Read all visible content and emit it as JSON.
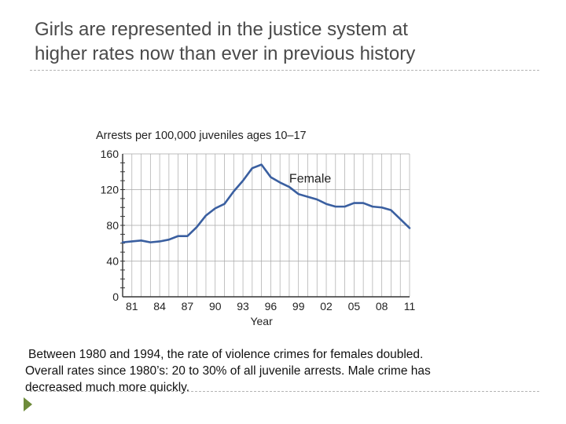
{
  "slide": {
    "title": "Girls are represented in the justice system at\nhigher rates now than ever in previous history",
    "caption_lines": [
      "Between  1980 and 1994, the rate of violence crimes for females doubled.",
      "Overall rates since 1980’s: 20 to 30% of all juvenile arrests. Male crime has",
      "decreased much more quickly."
    ]
  },
  "colors": {
    "line": "#3a5fa0",
    "grid": "#a9a9a9",
    "axis": "#333333",
    "bullet": "#6d8b3a"
  },
  "chart_data": {
    "type": "line",
    "title": "Arrests per 100,000 juveniles ages 10–17",
    "xlabel": "Year",
    "ylabel": "",
    "ylim": [
      0,
      160
    ],
    "yticks": [
      0,
      40,
      80,
      120,
      160
    ],
    "xlim": [
      1980,
      2011
    ],
    "xticks": [
      1981,
      1984,
      1987,
      1990,
      1993,
      1996,
      1999,
      2002,
      2005,
      2008,
      2011
    ],
    "xtick_labels": [
      "81",
      "84",
      "87",
      "90",
      "93",
      "96",
      "99",
      "02",
      "05",
      "08",
      "11"
    ],
    "grid": true,
    "series": [
      {
        "name": "Female",
        "x": [
          1980,
          1981,
          1982,
          1983,
          1984,
          1985,
          1986,
          1987,
          1988,
          1989,
          1990,
          1991,
          1992,
          1993,
          1994,
          1995,
          1996,
          1997,
          1998,
          1999,
          2000,
          2001,
          2002,
          2003,
          2004,
          2005,
          2006,
          2007,
          2008,
          2009,
          2010,
          2011
        ],
        "y": [
          61,
          62,
          63,
          61,
          62,
          64,
          68,
          68,
          78,
          91,
          99,
          104,
          118,
          130,
          144,
          148,
          134,
          128,
          123,
          115,
          112,
          109,
          104,
          101,
          101,
          105,
          105,
          101,
          100,
          97,
          87,
          77
        ]
      }
    ]
  }
}
